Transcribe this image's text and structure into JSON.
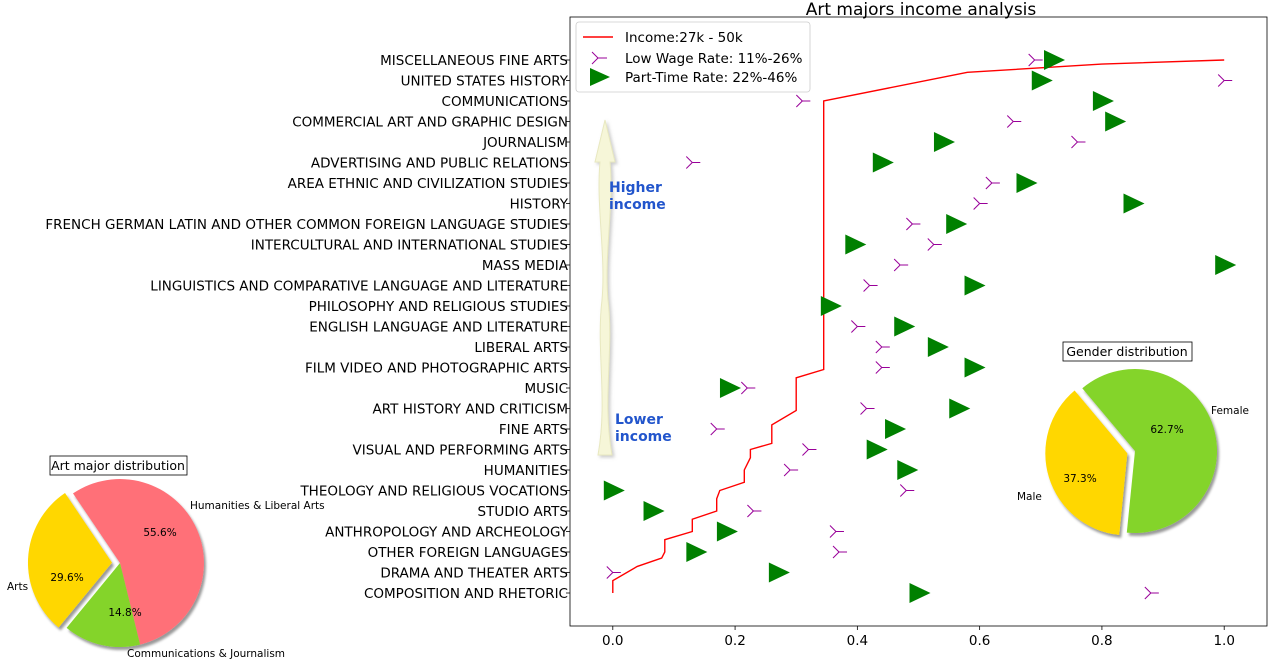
{
  "colors": {
    "income_line": "#ff0000",
    "low_wage_marker": "#990099",
    "part_time_marker": "#008000",
    "arrow_fill": "#f6f6d8",
    "annotation_text": "#2255cc",
    "pie_red": "#ff6f78",
    "pie_yellow": "#ffd700",
    "pie_green": "#84d42a"
  },
  "chart_data": [
    {
      "type": "line+scatter",
      "title": "Art majors income analysis",
      "xlim": [
        -0.07,
        1.07
      ],
      "xticks": [
        "0.0",
        "0.2",
        "0.4",
        "0.6",
        "0.8",
        "1.0"
      ],
      "xtick_values": [
        0.0,
        0.2,
        0.4,
        0.6,
        0.8,
        1.0
      ],
      "grid": false,
      "legend_position": "top-left",
      "categories": [
        "COMPOSITION AND RHETORIC",
        "DRAMA AND THEATER ARTS",
        "OTHER FOREIGN LANGUAGES",
        "ANTHROPOLOGY AND ARCHEOLOGY",
        "STUDIO ARTS",
        "THEOLOGY AND RELIGIOUS VOCATIONS",
        "HUMANITIES",
        "VISUAL AND PERFORMING ARTS",
        "FINE ARTS",
        "ART HISTORY AND CRITICISM",
        "MUSIC",
        "FILM VIDEO AND PHOTOGRAPHIC ARTS",
        "LIBERAL ARTS",
        "ENGLISH LANGUAGE AND LITERATURE",
        "PHILOSOPHY AND RELIGIOUS STUDIES",
        "LINGUISTICS AND COMPARATIVE LANGUAGE AND LITERATURE",
        "MASS MEDIA",
        "INTERCULTURAL AND INTERNATIONAL STUDIES",
        "FRENCH GERMAN LATIN AND OTHER COMMON FOREIGN LANGUAGE STUDIES",
        "HISTORY",
        "AREA ETHNIC AND CIVILIZATION STUDIES",
        "ADVERTISING AND PUBLIC RELATIONS",
        "JOURNALISM",
        "COMMERCIAL ART AND GRAPHIC DESIGN",
        "COMMUNICATIONS",
        "UNITED STATES HISTORY",
        "MISCELLANEOUS FINE ARTS"
      ],
      "series": [
        {
          "name": "Income:27k - 50k",
          "kind": "line",
          "values": [
            0.0,
            0.0,
            0.04,
            0.08,
            0.085,
            0.085,
            0.13,
            0.13,
            0.17,
            0.17,
            0.175,
            0.215,
            0.215,
            0.225,
            0.225,
            0.26,
            0.26,
            0.3,
            0.3,
            0.3,
            0.345,
            0.345,
            0.345,
            0.345,
            0.345,
            0.345,
            0.345
          ],
          "points": [
            [
              0.0,
              0.0
            ],
            [
              0.0,
              0.6
            ],
            [
              0.04,
              1.3
            ],
            [
              0.08,
              1.7
            ],
            [
              0.085,
              2.0
            ],
            [
              0.085,
              2.6
            ],
            [
              0.13,
              3.0
            ],
            [
              0.13,
              3.6
            ],
            [
              0.17,
              4.0
            ],
            [
              0.17,
              4.6
            ],
            [
              0.175,
              5.0
            ],
            [
              0.215,
              5.4
            ],
            [
              0.215,
              6.0
            ],
            [
              0.225,
              6.6
            ],
            [
              0.225,
              7.0
            ],
            [
              0.26,
              7.3
            ],
            [
              0.26,
              8.2
            ],
            [
              0.3,
              8.9
            ],
            [
              0.3,
              10.5
            ],
            [
              0.345,
              10.9
            ],
            [
              0.345,
              13.0
            ],
            [
              0.345,
              17.0
            ],
            [
              0.345,
              19.5
            ],
            [
              0.345,
              24.0
            ],
            [
              0.58,
              25.4
            ],
            [
              0.8,
              25.8
            ],
            [
              1.0,
              26.0
            ]
          ]
        },
        {
          "name": "Low Wage Rate: 11%-26%",
          "kind": "scatter",
          "marker": "tri_left",
          "values": [
            0.88,
            0.0,
            0.37,
            0.365,
            0.23,
            0.48,
            0.29,
            0.32,
            0.17,
            0.415,
            0.22,
            0.44,
            0.44,
            0.4,
            0.355,
            0.42,
            0.47,
            0.525,
            0.49,
            0.6,
            0.62,
            0.13,
            0.76,
            0.655,
            0.31,
            1.0,
            0.69
          ]
        },
        {
          "name": "Part-Time Rate: 22%-46%",
          "kind": "scatter",
          "marker": "triangle_right",
          "values": [
            0.5,
            0.27,
            0.135,
            0.185,
            0.065,
            0.0,
            0.48,
            0.43,
            0.46,
            0.565,
            0.19,
            0.59,
            0.53,
            0.475,
            0.355,
            0.59,
            1.0,
            0.395,
            0.56,
            0.85,
            0.675,
            0.44,
            0.54,
            0.82,
            0.8,
            0.7,
            0.72
          ]
        }
      ],
      "annotations": [
        {
          "text_lines": [
            "Higher",
            "income"
          ]
        },
        {
          "text_lines": [
            "Lower",
            "income"
          ]
        }
      ]
    },
    {
      "type": "pie",
      "title": "Art major distribution",
      "labels": [
        "Humanities & Liberal Arts",
        "Communications & Journalism",
        "Arts"
      ],
      "values": [
        55.6,
        14.8,
        29.6
      ],
      "value_labels": [
        "55.6%",
        "14.8%",
        "29.6%"
      ],
      "colors": [
        "#ff6f78",
        "#84d42a",
        "#ffd700"
      ],
      "exploded": "Arts",
      "shadow": true
    },
    {
      "type": "pie",
      "title": "Gender distribution",
      "labels": [
        "Female",
        "Male"
      ],
      "values": [
        62.7,
        37.3
      ],
      "value_labels": [
        "62.7%",
        "37.3%"
      ],
      "colors": [
        "#84d42a",
        "#ffd700"
      ],
      "exploded": "Male",
      "shadow": true
    }
  ]
}
